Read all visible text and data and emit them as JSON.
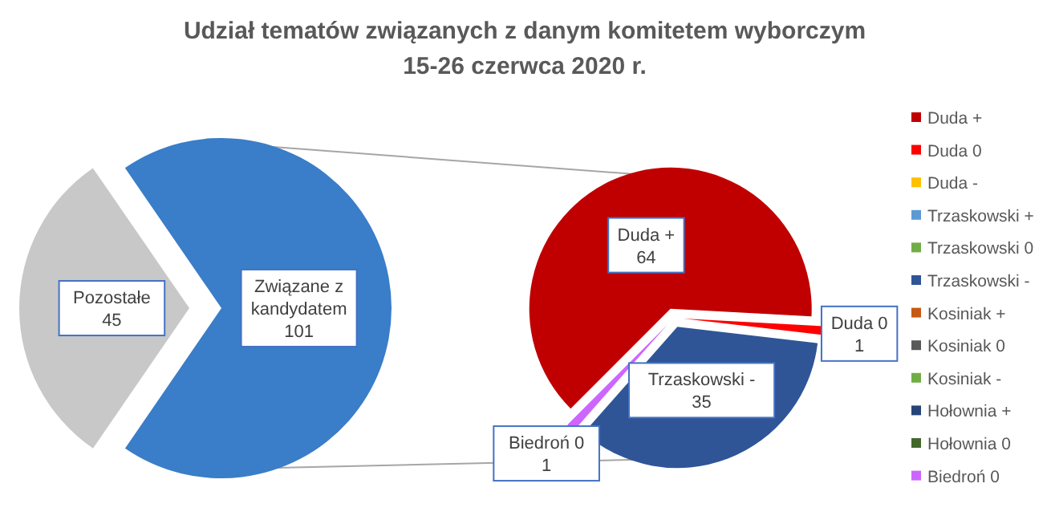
{
  "chart_data": [
    {
      "type": "pie",
      "title": "Udział tematów związanych z danym komitetem wyborczym\n15-26 czerwca 2020 r.",
      "categories": [
        "Pozostałe",
        "Związane z kandydatem"
      ],
      "values": [
        45,
        101
      ],
      "colors": [
        "#c8c8c8",
        "#3a7dc8"
      ],
      "data_labels": true,
      "legend": false
    },
    {
      "type": "pie",
      "categories": [
        "Duda +",
        "Duda 0",
        "Duda -",
        "Trzaskowski +",
        "Trzaskowski 0",
        "Trzaskowski -",
        "Kosiniak +",
        "Kosiniak 0",
        "Kosiniak -",
        "Hołownia +",
        "Hołownia 0",
        "Biedroń 0"
      ],
      "values": [
        64,
        1,
        0,
        0,
        0,
        35,
        0,
        0,
        0,
        0,
        0,
        1
      ],
      "colors": [
        "#c00000",
        "#ff0000",
        "#ffc000",
        "#5b9bd5",
        "#70ad47",
        "#2f5597",
        "#c55a11",
        "#595959",
        "#70ad47",
        "#264478",
        "#43682b",
        "#cc66ff"
      ],
      "data_labels": true,
      "legend": "right"
    }
  ]
}
